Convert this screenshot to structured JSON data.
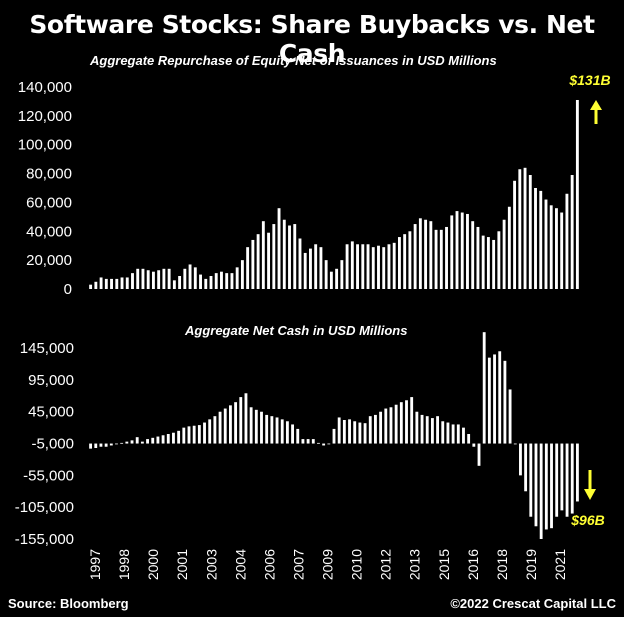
{
  "title": "Software Stocks: Share Buybacks vs. Net Cash",
  "source": "Source: Bloomberg",
  "credit": "©2022 Crescat Capital LLC",
  "colors": {
    "background": "#000000",
    "bars": "#ffffff",
    "annotation": "#ffff33"
  },
  "chart_data": [
    {
      "type": "bar",
      "title": "Aggregate Repurchase of Equity Net of Issuances in USD Millions",
      "ylim": [
        0,
        140000
      ],
      "yticks": [
        0,
        20000,
        40000,
        60000,
        80000,
        100000,
        120000,
        140000
      ],
      "ytick_labels": [
        "0",
        "20,000",
        "40,000",
        "60,000",
        "80,000",
        "100,000",
        "120,000",
        "140,000"
      ],
      "annotation": "$131B",
      "annotation_arrow": "up",
      "values": [
        3000,
        5000,
        8000,
        7000,
        7000,
        7000,
        8000,
        8000,
        11000,
        14000,
        14000,
        13000,
        12000,
        13000,
        14000,
        14000,
        6000,
        9000,
        14000,
        17000,
        15000,
        10000,
        7000,
        9000,
        11000,
        12000,
        11000,
        11000,
        15000,
        20000,
        29000,
        34000,
        38000,
        47000,
        39000,
        45000,
        56000,
        48000,
        44000,
        45000,
        35000,
        25000,
        28000,
        31000,
        29000,
        20000,
        12000,
        14000,
        20000,
        31000,
        33000,
        31000,
        31000,
        31000,
        29000,
        30000,
        29000,
        31000,
        32000,
        36000,
        38000,
        40000,
        45000,
        49000,
        48000,
        47000,
        41000,
        41000,
        43000,
        51000,
        54000,
        53000,
        52000,
        47000,
        43000,
        37000,
        36000,
        34000,
        40000,
        48000,
        57000,
        75000,
        83000,
        84000,
        79000,
        70000,
        68000,
        62000,
        58000,
        56000,
        53000,
        66000,
        79000,
        131000
      ]
    },
    {
      "type": "bar",
      "title": "Aggregate Net Cash in USD Millions",
      "ylim": [
        -155000,
        175000
      ],
      "yticks": [
        -155000,
        -105000,
        -55000,
        -5000,
        45000,
        95000,
        145000
      ],
      "ytick_labels": [
        "-155,000",
        "-105,000",
        "-55,000",
        "-5,000",
        "45,000",
        "95,000",
        "145,000"
      ],
      "annotation": "$96B",
      "annotation_arrow": "down",
      "x_tick_labels": [
        "1997",
        "1998",
        "2000",
        "2001",
        "2003",
        "2004",
        "2006",
        "2007",
        "2009",
        "2010",
        "2012",
        "2013",
        "2015",
        "2016",
        "2018",
        "2019",
        "2021"
      ],
      "values": [
        -13000,
        -12000,
        -10000,
        -10000,
        -8000,
        -6000,
        -4000,
        -2000,
        0,
        5000,
        -2000,
        2000,
        4000,
        6000,
        8000,
        10000,
        12000,
        15000,
        20000,
        22000,
        23000,
        24000,
        28000,
        33000,
        38000,
        45000,
        50000,
        55000,
        60000,
        68000,
        74000,
        52000,
        48000,
        45000,
        40000,
        38000,
        36000,
        33000,
        30000,
        25000,
        18000,
        2000,
        2000,
        2000,
        -4000,
        -8000,
        -6000,
        18000,
        36000,
        32000,
        33000,
        30000,
        28000,
        27000,
        38000,
        40000,
        45000,
        50000,
        52000,
        56000,
        60000,
        63000,
        68000,
        45000,
        40000,
        38000,
        35000,
        38000,
        30000,
        28000,
        25000,
        25000,
        20000,
        10000,
        -10000,
        -40000,
        170000,
        130000,
        135000,
        140000,
        125000,
        80000,
        -5000,
        -55000,
        -80000,
        -120000,
        -135000,
        -155000,
        -140000,
        -138000,
        -120000,
        -110000,
        -120000,
        -115000,
        -96000
      ]
    }
  ]
}
